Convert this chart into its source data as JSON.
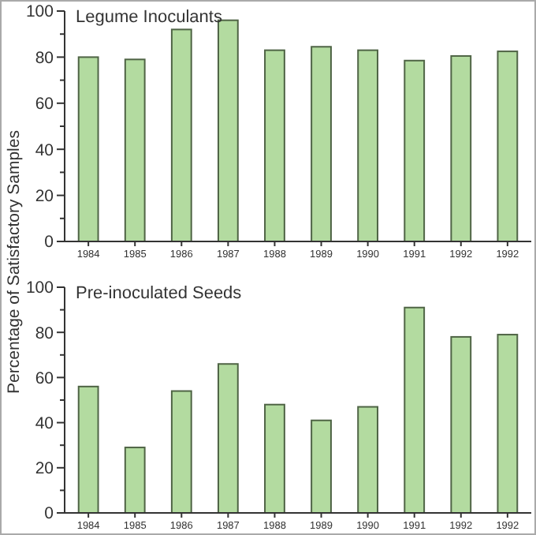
{
  "chart_data": [
    {
      "type": "bar",
      "title": "Legume Inoculants",
      "ylabel": "Percentage of Satisfactory Samples",
      "categories": [
        "1984",
        "1985",
        "1986",
        "1987",
        "1988",
        "1989",
        "1990",
        "1991",
        "1992",
        "1992"
      ],
      "values": [
        80,
        79,
        92,
        96,
        83,
        84.5,
        83,
        78.5,
        80.5,
        82.5
      ],
      "color": "#b3dba0",
      "ylim": [
        0,
        100
      ],
      "yticks": [
        0,
        {
          "value": 10,
          "label": null
        },
        20,
        {
          "value": 30,
          "label": null
        },
        40,
        {
          "value": 50,
          "label": null
        },
        60,
        {
          "value": 70,
          "label": null
        },
        80,
        {
          "value": 90,
          "label": null
        },
        100
      ],
      "grid": false
    },
    {
      "type": "bar",
      "title": "Pre-inoculated Seeds",
      "categories": [
        "1984",
        "1985",
        "1986",
        "1987",
        "1988",
        "1989",
        "1990",
        "1991",
        "1992",
        "1992"
      ],
      "values": [
        56,
        29,
        54,
        66,
        48,
        41,
        47,
        91,
        78,
        79
      ],
      "color": "#b3dba0",
      "ylim": [
        0,
        100
      ],
      "yticks": [
        0,
        {
          "value": 10,
          "label": null
        },
        20,
        {
          "value": 30,
          "label": null
        },
        40,
        {
          "value": 50,
          "label": null
        },
        60,
        {
          "value": 70,
          "label": null
        },
        80,
        {
          "value": 90,
          "label": null
        },
        100
      ],
      "grid": false
    }
  ]
}
